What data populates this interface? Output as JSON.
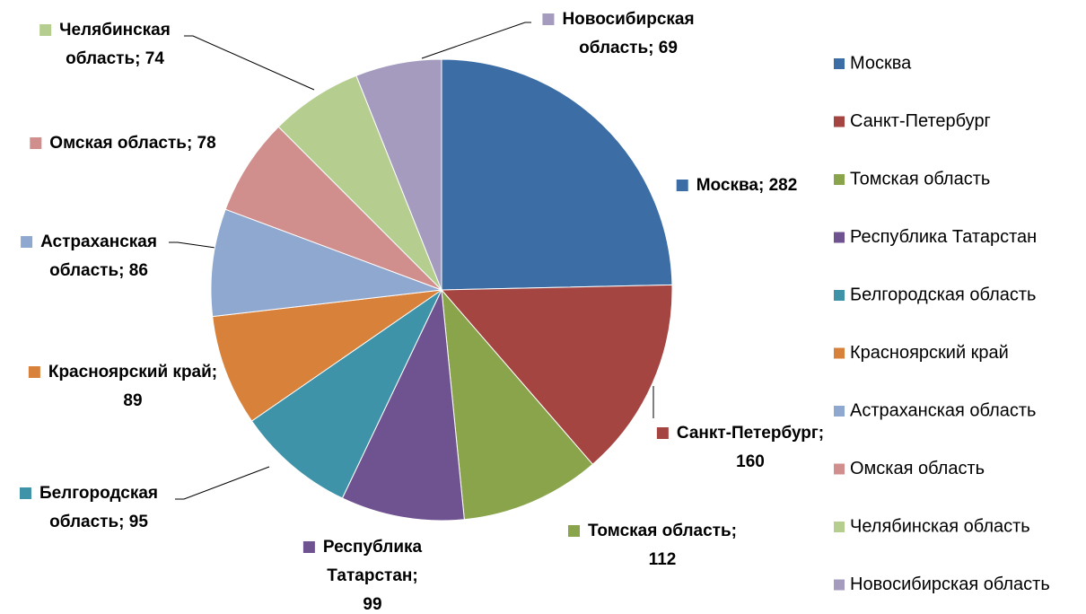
{
  "chart_data": {
    "type": "pie",
    "categories": [
      "Москва",
      "Санкт-Петербург",
      "Томская область",
      "Республика Татарстан",
      "Белгородская область",
      "Красноярский край",
      "Астраханская область",
      "Омская область",
      "Челябинская область",
      "Новосибирская область"
    ],
    "values": [
      282,
      160,
      112,
      99,
      95,
      89,
      86,
      78,
      74,
      69
    ],
    "value_labels": [
      "Москва; 282",
      "Санкт-Петербург; 160",
      "Томская область; 112",
      "Республика Татарстан; 99",
      "Белгородская область; 95",
      "Красноярский край; 89",
      "Астраханская область; 86",
      "Омская область; 78",
      "Челябинская область; 74",
      "Новосибирская область; 69"
    ],
    "colors": [
      "#3c6ea5",
      "#a54542",
      "#89a44b",
      "#6f5290",
      "#3e93a8",
      "#d8813a",
      "#8fa8d0",
      "#d08f8c",
      "#b5cd8e",
      "#a49bbf"
    ],
    "legend": "right"
  }
}
